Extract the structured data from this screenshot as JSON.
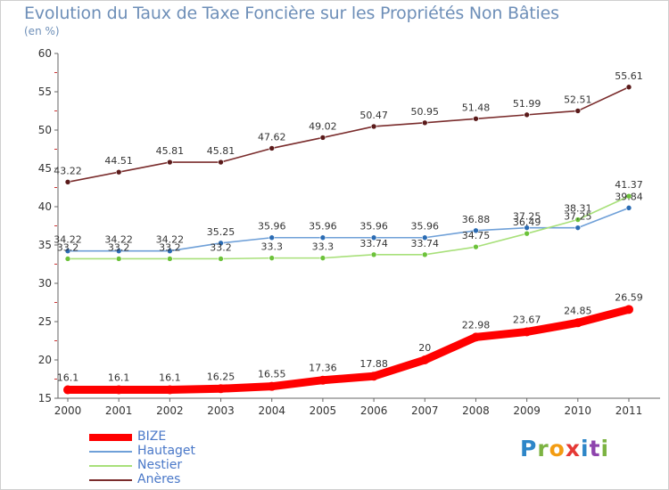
{
  "title": "Evolution du Taux de Taxe Foncière sur les Propriétés Non Bâties",
  "unit": "(en %)",
  "logo": [
    "P",
    "r",
    "o",
    "x",
    "i",
    "t",
    "i"
  ],
  "chart_data": {
    "type": "line",
    "x": [
      "2000",
      "2001",
      "2002",
      "2003",
      "2004",
      "2005",
      "2006",
      "2007",
      "2008",
      "2009",
      "2010",
      "2011"
    ],
    "ylim": [
      15,
      60
    ],
    "yticks": [
      15,
      20,
      25,
      30,
      35,
      40,
      45,
      50,
      55,
      60
    ],
    "grid": false,
    "legend_position": "bottom-left",
    "series": [
      {
        "name": "BIZE",
        "color": "#ff0000",
        "marker_color": "#ff0000",
        "values": [
          16.1,
          16.1,
          16.1,
          16.25,
          16.55,
          17.36,
          17.88,
          20,
          22.98,
          23.67,
          24.85,
          26.59
        ],
        "labels": [
          "16.1",
          "16.1",
          "16.1",
          "16.25",
          "16.55",
          "17.36",
          "17.88",
          "20",
          "22.98",
          "23.67",
          "24.85",
          "26.59"
        ]
      },
      {
        "name": "Hautaget",
        "color": "#6fa0d8",
        "marker_color": "#2a6bb3",
        "values": [
          34.22,
          34.22,
          34.22,
          35.25,
          35.96,
          35.96,
          35.96,
          35.96,
          36.88,
          37.25,
          37.25,
          39.84
        ],
        "labels": [
          "34.22",
          "34.22",
          "34.22",
          "35.25",
          "35.96",
          "35.96",
          "35.96",
          "35.96",
          "36.88",
          "37.25",
          "37.25",
          "39.84"
        ]
      },
      {
        "name": "Nestier",
        "color": "#a8e07a",
        "marker_color": "#6cc23a",
        "values": [
          33.2,
          33.2,
          33.2,
          33.2,
          33.3,
          33.3,
          33.74,
          33.74,
          34.75,
          36.49,
          38.31,
          41.37
        ],
        "labels": [
          "33.2",
          "33.2",
          "33.2",
          "33.2",
          "33.3",
          "33.3",
          "33.74",
          "33.74",
          "34.75",
          "36.49",
          "38.31",
          "41.37"
        ]
      },
      {
        "name": "Anères",
        "color": "#7a2c2c",
        "marker_color": "#5a1a1a",
        "values": [
          43.22,
          44.51,
          45.81,
          45.81,
          47.62,
          49.02,
          50.47,
          50.95,
          51.48,
          51.99,
          52.51,
          55.61
        ],
        "labels": [
          "43.22",
          "44.51",
          "45.81",
          "45.81",
          "47.62",
          "49.02",
          "50.47",
          "50.95",
          "51.48",
          "51.99",
          "52.51",
          "55.61"
        ]
      }
    ]
  }
}
